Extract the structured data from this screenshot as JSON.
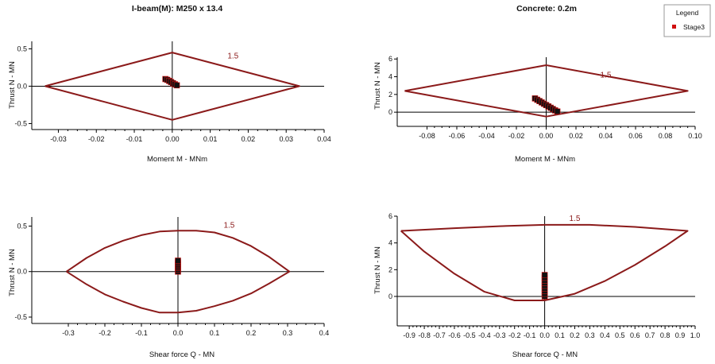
{
  "colors": {
    "envelope": "#8b1a1a",
    "points": "#111111",
    "stage_marker": "#d01010",
    "axis": "#000000"
  },
  "legend": {
    "title": "Legend",
    "items": [
      "Stage3"
    ]
  },
  "chart_data": [
    {
      "type": "line",
      "title": "I-beam(M): M250 x 13.4",
      "xlabel": "Moment M - MNm",
      "ylabel": "Thrust N - MN",
      "xlim": [
        -0.037,
        0.04
      ],
      "ylim": [
        -0.58,
        0.6
      ],
      "xticks": [
        -0.03,
        -0.02,
        -0.01,
        0.0,
        0.01,
        0.02,
        0.03,
        0.04
      ],
      "xtick_labels": [
        "-0.03",
        "-0.02",
        "-0.01",
        "0.00",
        "0.01",
        "0.02",
        "0.03",
        "0.04"
      ],
      "yticks": [
        -0.5,
        0.0,
        0.5
      ],
      "ytick_labels": [
        "-0.5",
        "0.0",
        "0.5"
      ],
      "envelope_label": "1.5",
      "envelope_label_at": [
        0.016,
        0.37
      ],
      "envelope": {
        "name": "",
        "x": [
          -0.0335,
          0.0,
          0.0335,
          0.0,
          -0.0335
        ],
        "y": [
          0.0,
          0.45,
          0.0,
          -0.45,
          0.0
        ]
      },
      "points": {
        "name": "Stage3",
        "x": [
          -0.0018,
          -0.0013,
          -0.0008,
          -0.0003,
          0.0002,
          0.0007,
          0.0012
        ],
        "y": [
          0.095,
          0.085,
          0.07,
          0.055,
          0.04,
          0.025,
          0.012
        ]
      }
    },
    {
      "type": "line",
      "title": "Concrete: 0.2m",
      "xlabel": "Moment M - MNm",
      "ylabel": "Thrust N - MN",
      "xlim": [
        -0.1,
        0.1
      ],
      "ylim": [
        -1.6,
        6.2
      ],
      "xticks": [
        -0.08,
        -0.06,
        -0.04,
        -0.02,
        0.0,
        0.02,
        0.04,
        0.06,
        0.08,
        0.1
      ],
      "xtick_labels": [
        "-0.08",
        "-0.06",
        "-0.04",
        "-0.02",
        "0.00",
        "0.02",
        "0.04",
        "0.06",
        "0.08",
        "0.10"
      ],
      "yticks": [
        0,
        2,
        4,
        6
      ],
      "ytick_labels": [
        "0",
        "2",
        "4",
        "6"
      ],
      "envelope_label": "1.5",
      "envelope_label_at": [
        0.04,
        3.9
      ],
      "envelope": {
        "name": "",
        "x": [
          -0.095,
          0.0,
          0.095,
          0.0,
          -0.095
        ],
        "y": [
          2.4,
          5.3,
          2.4,
          -0.5,
          2.4
        ]
      },
      "points": {
        "name": "Stage3",
        "x": [
          -0.0075,
          -0.006,
          -0.0045,
          -0.003,
          -0.0015,
          0.0,
          0.0015,
          0.003,
          0.0045,
          0.006,
          0.0075
        ],
        "y": [
          1.55,
          1.4,
          1.25,
          1.1,
          0.95,
          0.8,
          0.65,
          0.5,
          0.35,
          0.2,
          0.08
        ]
      }
    },
    {
      "type": "line",
      "title": "",
      "xlabel": "Shear force Q - MN",
      "ylabel": "Thrust N - MN",
      "xlim": [
        -0.4,
        0.4
      ],
      "ylim": [
        -0.57,
        0.6
      ],
      "xticks": [
        -0.3,
        -0.2,
        -0.1,
        0.0,
        0.1,
        0.2,
        0.3,
        0.4
      ],
      "xtick_labels": [
        "-0.3",
        "-0.2",
        "-0.1",
        "0.0",
        "0.1",
        "0.2",
        "0.3",
        "0.4"
      ],
      "yticks": [
        -0.5,
        0.0,
        0.5
      ],
      "ytick_labels": [
        "-0.5",
        "0.0",
        "0.5"
      ],
      "envelope_label": "1.5",
      "envelope_label_at": [
        0.14,
        0.48
      ],
      "envelope": {
        "name": "",
        "x": [
          -0.305,
          -0.25,
          -0.2,
          -0.15,
          -0.1,
          -0.05,
          0.0,
          0.05,
          0.1,
          0.15,
          0.2,
          0.25,
          0.305,
          0.25,
          0.2,
          0.15,
          0.1,
          0.05,
          0.0,
          -0.05,
          -0.1,
          -0.15,
          -0.2,
          -0.25,
          -0.305
        ],
        "y": [
          0.0,
          0.15,
          0.26,
          0.34,
          0.4,
          0.44,
          0.45,
          0.45,
          0.43,
          0.37,
          0.28,
          0.16,
          0.0,
          -0.13,
          -0.24,
          -0.32,
          -0.38,
          -0.43,
          -0.45,
          -0.45,
          -0.4,
          -0.33,
          -0.25,
          -0.14,
          0.0
        ]
      },
      "points": {
        "name": "Stage3",
        "x": [
          0,
          0,
          0,
          0,
          0,
          0,
          0
        ],
        "y": [
          0.0,
          0.02,
          0.04,
          0.06,
          0.08,
          0.1,
          0.12
        ]
      }
    },
    {
      "type": "line",
      "title": "",
      "xlabel": "Shear force Q - MN",
      "ylabel": "Thrust N - MN",
      "xlim": [
        -0.98,
        1.0
      ],
      "ylim": [
        -2.2,
        6.0
      ],
      "xticks": [
        -0.9,
        -0.8,
        -0.7,
        -0.6,
        -0.5,
        -0.4,
        -0.3,
        -0.2,
        -0.1,
        0.0,
        0.1,
        0.2,
        0.3,
        0.4,
        0.5,
        0.6,
        0.7,
        0.8,
        0.9,
        1.0
      ],
      "xtick_labels": [
        "-0.9",
        "-0.8",
        "-0.7",
        "-0.6",
        "-0.5",
        "-0.4",
        "-0.3",
        "-0.2",
        "-0.1",
        "0.0",
        "0.1",
        "0.2",
        "0.3",
        "0.4",
        "0.5",
        "0.6",
        "0.7",
        "0.8",
        "0.9",
        "1.0"
      ],
      "yticks": [
        0,
        2,
        4,
        6
      ],
      "ytick_labels": [
        "0",
        "2",
        "4",
        "6"
      ],
      "envelope_label": "1.5",
      "envelope_label_at": [
        0.2,
        5.65
      ],
      "envelope": {
        "name": "",
        "x": [
          -0.955,
          -0.6,
          -0.3,
          0.0,
          0.3,
          0.6,
          0.95,
          0.8,
          0.6,
          0.4,
          0.2,
          0.0,
          -0.2,
          -0.4,
          -0.6,
          -0.8,
          -0.955
        ],
        "y": [
          4.9,
          5.1,
          5.25,
          5.35,
          5.35,
          5.2,
          4.9,
          3.75,
          2.35,
          1.15,
          0.2,
          -0.3,
          -0.3,
          0.35,
          1.7,
          3.35,
          4.9
        ]
      },
      "points": {
        "name": "Stage3",
        "x": [
          0,
          0,
          0,
          0,
          0,
          0,
          0,
          0,
          0
        ],
        "y": [
          0.0,
          0.2,
          0.4,
          0.6,
          0.8,
          1.0,
          1.2,
          1.4,
          1.6
        ]
      }
    }
  ]
}
